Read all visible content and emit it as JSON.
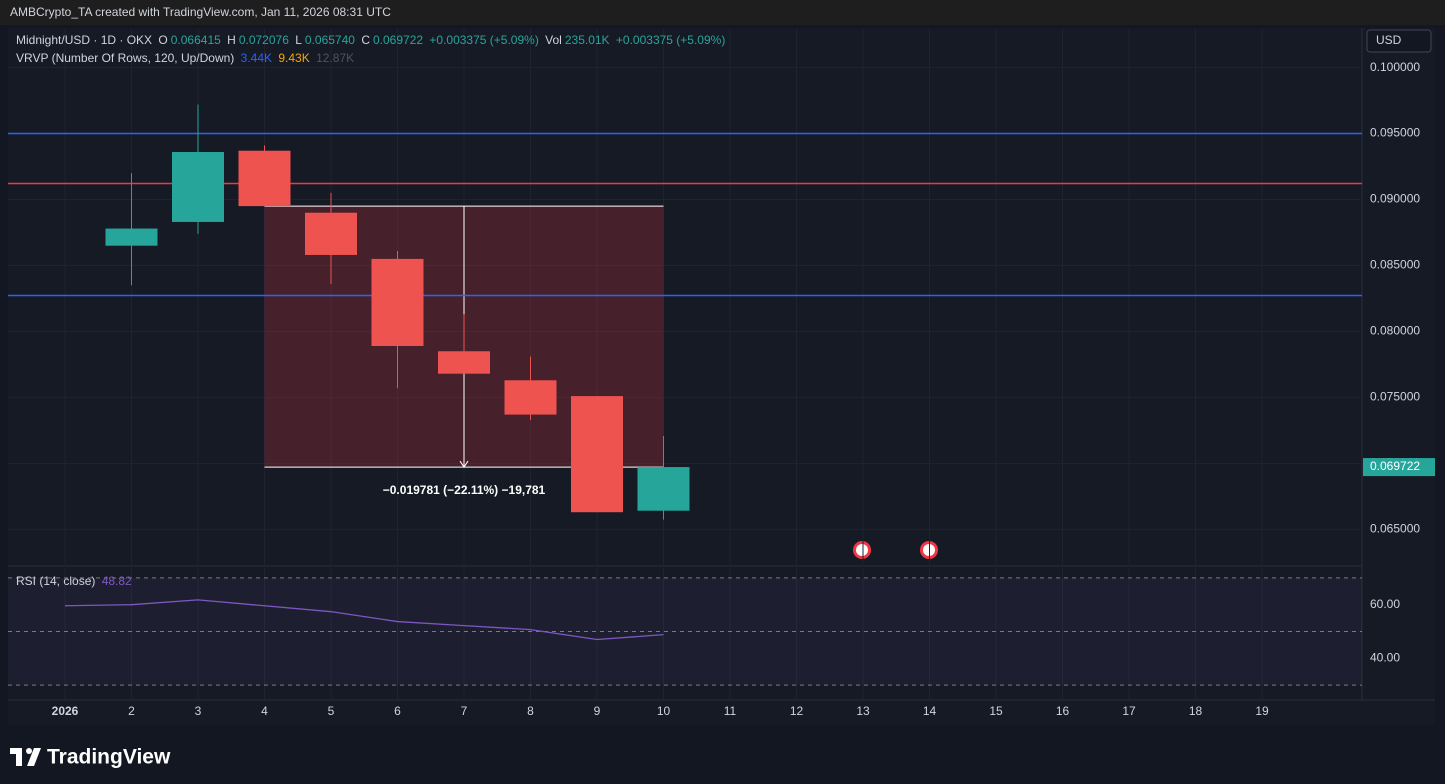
{
  "watermark": "AMBCrypto_TA created with TradingView.com, Jan 11, 2026 08:31 UTC",
  "legend": {
    "symbol": "Midnight/USD · 1D · OKX",
    "o_label": "O",
    "o": "0.066415",
    "h_label": "H",
    "h": "0.072076",
    "l_label": "L",
    "l": "0.065740",
    "c_label": "C",
    "c": "0.069722",
    "change": "+0.003375 (+5.09%)",
    "vol_label": "Vol",
    "vol": "235.01K",
    "vol_change": "+0.003375 (+5.09%)"
  },
  "indicator": {
    "name": "VRVP (Number Of Rows, 120, Up/Down)",
    "up": "3.44K",
    "down": "9.43K",
    "total": "12.87K"
  },
  "currency": "USD",
  "brand": "TradingView",
  "chart_data": [
    {
      "type": "candlestick",
      "categories": [
        "2026",
        "2",
        "3",
        "4",
        "5",
        "6",
        "7",
        "8",
        "9",
        "10",
        "11",
        "12",
        "13",
        "14",
        "15",
        "16",
        "17",
        "18",
        "19"
      ],
      "open": [
        null,
        0.0865,
        0.0883,
        0.0937,
        0.089,
        0.0855,
        0.0785,
        0.0763,
        0.0751,
        0.066415,
        null,
        null,
        null,
        null,
        null,
        null,
        null,
        null,
        null
      ],
      "high": [
        null,
        0.092,
        0.0972,
        0.0941,
        0.0905,
        0.0861,
        0.0813,
        0.0781,
        0.0751,
        0.072076,
        null,
        null,
        null,
        null,
        null,
        null,
        null,
        null,
        null
      ],
      "low": [
        null,
        0.0835,
        0.0874,
        0.0895,
        0.0836,
        0.0757,
        0.0768,
        0.0733,
        0.0663,
        0.06574,
        null,
        null,
        null,
        null,
        null,
        null,
        null,
        null,
        null
      ],
      "close": [
        null,
        0.0878,
        0.0936,
        0.0895,
        0.0858,
        0.0789,
        0.0768,
        0.0737,
        0.0663,
        0.069722,
        null,
        null,
        null,
        null,
        null,
        null,
        null,
        null,
        null
      ],
      "up_color": "#26a69a",
      "down_color": "#ef5350",
      "ylim": [
        0.0623,
        0.103
      ],
      "yticks": [
        {
          "value": 0.065,
          "label": "0.065000"
        },
        {
          "value": 0.07,
          "label": "0.070000"
        },
        {
          "value": 0.075,
          "label": "0.075000"
        },
        {
          "value": 0.08,
          "label": "0.080000"
        },
        {
          "value": 0.085,
          "label": "0.085000"
        },
        {
          "value": 0.09,
          "label": "0.090000"
        },
        {
          "value": 0.095,
          "label": "0.095000"
        },
        {
          "value": 0.1,
          "label": "0.100000"
        }
      ],
      "grid": true,
      "hlines": [
        {
          "value": 0.095,
          "color": "#2962ff"
        },
        {
          "value": 0.09121,
          "color": "#f23645"
        },
        {
          "value": 0.08273,
          "color": "#2962ff"
        }
      ],
      "measure": {
        "from_category": "4",
        "to_category": "10",
        "from": 0.089503,
        "to": 0.069722,
        "label": "−0.019781 (−22.11%) −19,781",
        "color": "#f23645"
      }
    },
    {
      "type": "line",
      "title": "RSI (14, close)",
      "values": [
        59.6,
        60.0,
        61.8,
        59.6,
        57.4,
        53.7,
        52.2,
        50.7,
        47.0,
        48.82,
        null,
        null,
        null,
        null,
        null,
        null,
        null,
        null,
        null
      ],
      "color": "#7e57c2",
      "ylim": [
        24.8,
        73.7
      ],
      "yticks": [
        {
          "value": 40,
          "label": "40.00"
        },
        {
          "value": 60,
          "label": "60.00"
        }
      ],
      "bands": [
        70,
        50,
        30
      ]
    }
  ]
}
